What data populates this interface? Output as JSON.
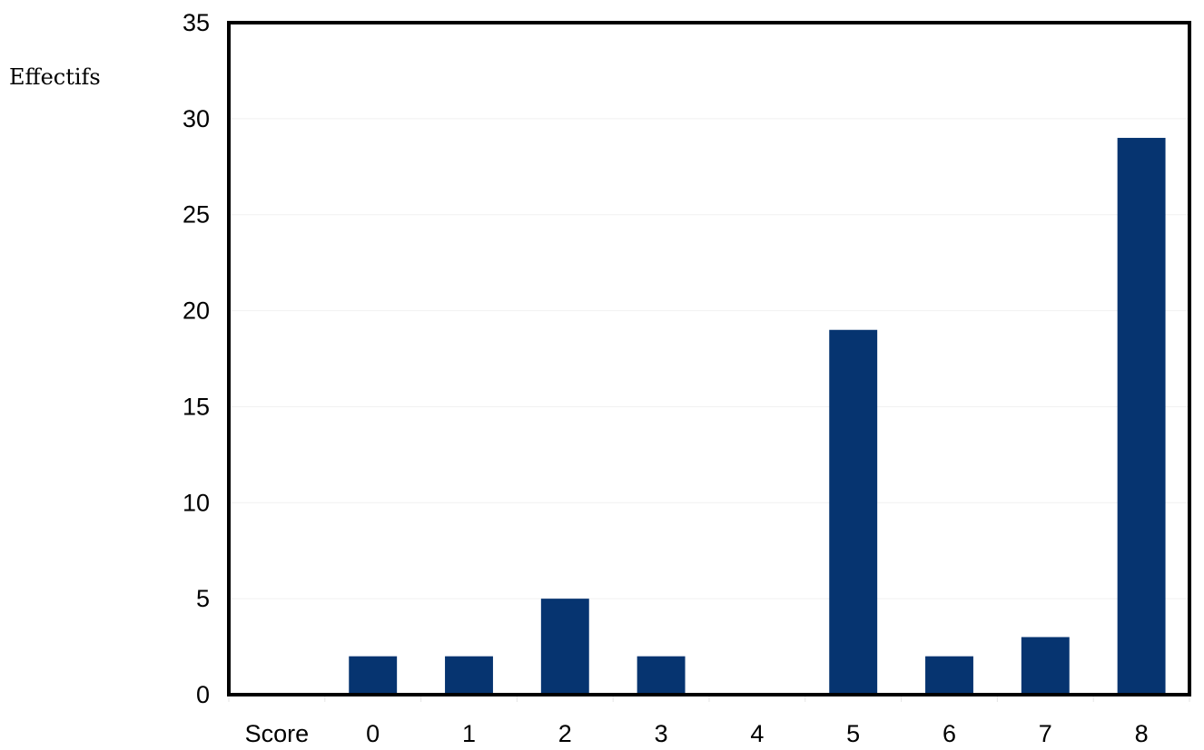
{
  "chart_data": {
    "type": "bar",
    "title": "",
    "xlabel": "",
    "ylabel": "Effectifs",
    "categories": [
      "Score",
      "0",
      "1",
      "2",
      "3",
      "4",
      "5",
      "6",
      "7",
      "8"
    ],
    "values": [
      0,
      2,
      2,
      5,
      2,
      0,
      19,
      2,
      3,
      29
    ],
    "ylim": [
      0,
      35
    ],
    "yticks": [
      0,
      5,
      10,
      15,
      20,
      25,
      30,
      35
    ],
    "grid": true,
    "legend": "none",
    "bar_color": "#063470",
    "axis_color": "#000000"
  }
}
